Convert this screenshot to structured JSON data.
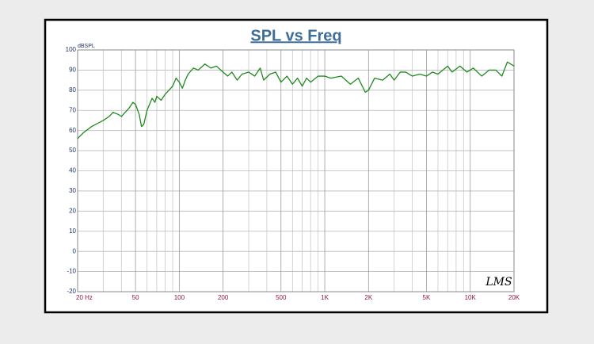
{
  "chart_data": {
    "type": "line",
    "title": "SPL vs Freq",
    "y_label": "dBSPL",
    "annotation": "LMS",
    "xscale": "log",
    "grid": true,
    "xlim": [
      20,
      20000
    ],
    "ylim": [
      -20,
      100
    ],
    "xticks": [
      {
        "value": 20,
        "label": "20 Hz"
      },
      50,
      100,
      200,
      500,
      {
        "value": 1000,
        "label": "1K"
      },
      {
        "value": 2000,
        "label": "2K"
      },
      {
        "value": 5000,
        "label": "5K"
      },
      {
        "value": 10000,
        "label": "10K"
      },
      {
        "value": 20000,
        "label": "20K"
      }
    ],
    "x_minor_grid": [
      30,
      40,
      60,
      70,
      80,
      90,
      300,
      400,
      600,
      700,
      800,
      900,
      3000,
      4000,
      6000,
      7000,
      8000,
      9000
    ],
    "yticks": [
      -20,
      -10,
      0,
      10,
      20,
      30,
      40,
      50,
      60,
      70,
      80,
      90,
      100
    ],
    "series": [
      {
        "name": "SPL",
        "color": "#1e8a1e",
        "x": [
          20,
          22,
          25,
          30,
          33,
          35,
          38,
          40,
          45,
          48,
          50,
          53,
          55,
          57,
          60,
          65,
          68,
          70,
          75,
          80,
          90,
          95,
          100,
          105,
          110,
          115,
          125,
          135,
          150,
          165,
          180,
          200,
          215,
          230,
          250,
          270,
          300,
          330,
          360,
          380,
          420,
          460,
          500,
          550,
          600,
          650,
          700,
          750,
          800,
          900,
          1000,
          1100,
          1300,
          1500,
          1700,
          1900,
          2000,
          2200,
          2500,
          2800,
          3000,
          3300,
          3600,
          4000,
          4500,
          5000,
          5500,
          6000,
          7000,
          7500,
          8500,
          9500,
          10500,
          12000,
          13500,
          15000,
          16500,
          18000,
          20000
        ],
        "values": [
          56,
          59,
          62,
          65,
          67,
          69,
          68,
          67,
          71,
          74,
          73,
          68,
          62,
          63,
          70,
          76,
          74,
          77,
          75,
          78,
          82,
          86,
          84,
          81,
          85,
          88,
          91,
          90,
          93,
          91,
          92,
          89,
          87,
          89,
          85,
          88,
          89,
          87,
          91,
          85,
          88,
          89,
          84,
          87,
          83,
          86,
          82,
          86,
          84,
          87,
          87,
          86,
          87,
          83,
          86,
          79,
          80,
          86,
          85,
          88,
          85,
          89,
          89,
          87,
          88,
          87,
          89,
          88,
          92,
          89,
          92,
          89,
          91,
          87,
          90,
          90,
          87,
          94,
          92
        ]
      }
    ]
  }
}
